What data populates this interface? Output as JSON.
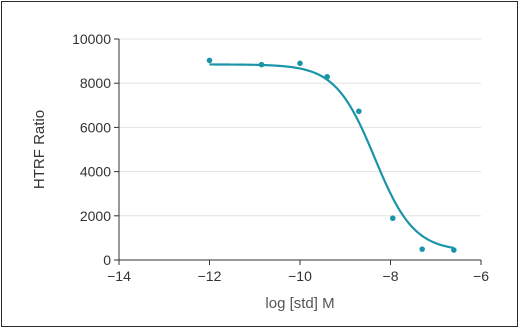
{
  "chart_data": {
    "type": "scatter",
    "title": "",
    "xlabel": "log [std] M",
    "ylabel": "HTRF Ratio",
    "xlim": [
      -14,
      -6
    ],
    "ylim": [
      0,
      10000
    ],
    "x_ticks": [
      -14,
      -12,
      -10,
      -8,
      -6
    ],
    "y_ticks": [
      0,
      2000,
      4000,
      6000,
      8000,
      10000
    ],
    "x_tick_labels": [
      "−14",
      "−12",
      "−10",
      "−8",
      "−6"
    ],
    "y_tick_labels": [
      "0",
      "2000",
      "4000",
      "6000",
      "8000",
      "10000"
    ],
    "grid": {
      "horizontal": true,
      "vertical": false
    },
    "legend": "none",
    "colors": {
      "series": "#1a95a8",
      "grid": "#e3e3e3",
      "axis": "#333333"
    },
    "series": [
      {
        "points": [
          {
            "x": -12.0,
            "y": 9030
          },
          {
            "x": -10.85,
            "y": 8840
          },
          {
            "x": -10.0,
            "y": 8900
          },
          {
            "x": -9.4,
            "y": 8290
          },
          {
            "x": -8.7,
            "y": 6730
          },
          {
            "x": -7.95,
            "y": 1890
          },
          {
            "x": -7.3,
            "y": 490
          },
          {
            "x": -6.6,
            "y": 450
          }
        ],
        "fit": {
          "model": "4PL",
          "top": 8850,
          "bottom": 400,
          "log_ic50": -8.35,
          "hill": 1.0,
          "x_range": [
            -12.0,
            -6.6
          ]
        }
      }
    ]
  }
}
